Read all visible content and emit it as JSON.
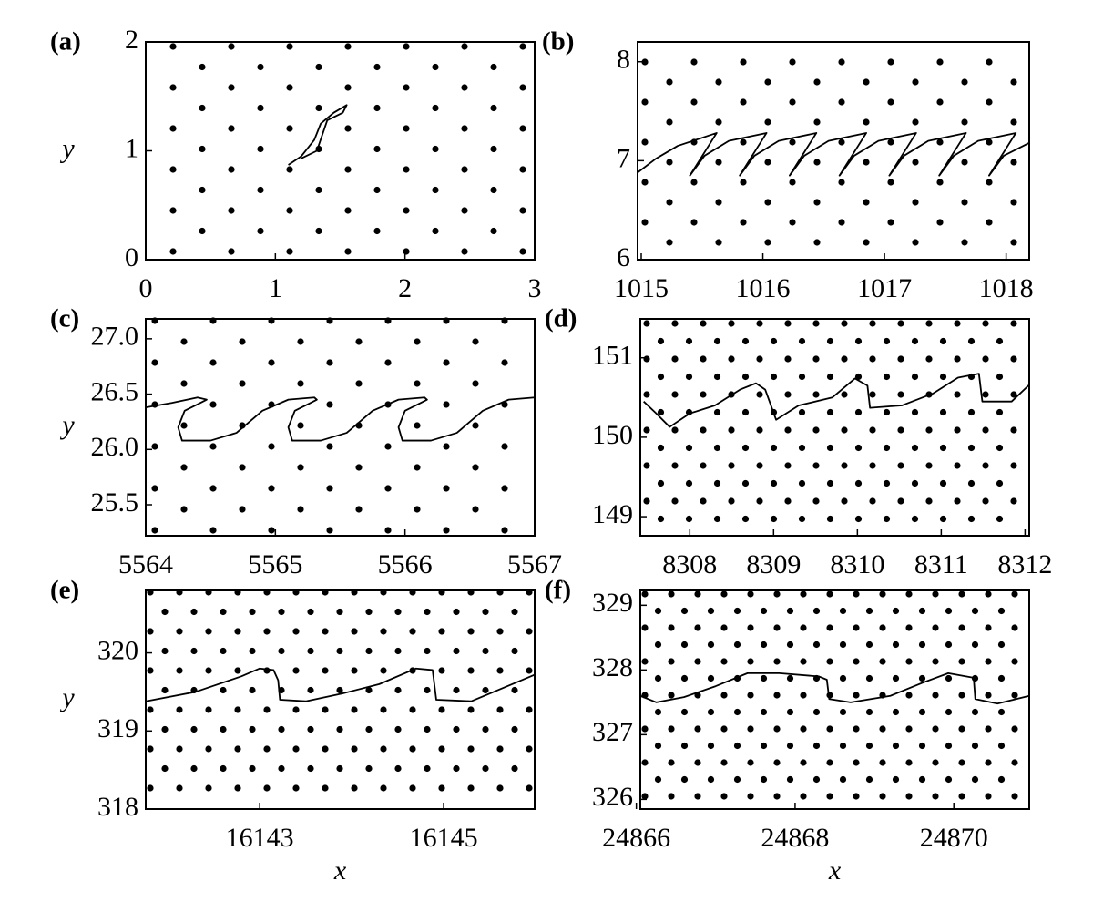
{
  "chart_data": [
    {
      "type": "line",
      "label": "(a)",
      "y_label": "y",
      "xlim": [
        0,
        3
      ],
      "ylim": [
        0,
        2
      ],
      "xticks": [
        0,
        1,
        2,
        3
      ],
      "yticks": [
        0,
        1,
        2
      ],
      "series": [
        {
          "color": "#000000",
          "x": [
            1.1,
            1.2,
            1.3,
            1.35,
            1.45,
            1.55,
            1.52,
            1.4,
            1.32,
            1.2
          ],
          "y": [
            0.87,
            0.95,
            1.1,
            1.25,
            1.35,
            1.42,
            1.35,
            1.28,
            1.0,
            0.93
          ]
        }
      ]
    },
    {
      "type": "line",
      "label": "(b)",
      "xlim": [
        1014.97,
        1018.19
      ],
      "ylim": [
        6,
        8.2
      ],
      "xticks": [
        1015,
        1016,
        1017,
        1018
      ],
      "yticks": [
        6,
        7,
        8
      ],
      "series": [
        {
          "color": "#000000",
          "x": [
            1014.97,
            1015.12,
            1015.3,
            1015.62,
            1015.4,
            1015.52,
            1015.72,
            1016.03,
            1015.81,
            1015.93,
            1016.13,
            1016.44,
            1016.22,
            1016.34,
            1016.54,
            1016.85,
            1016.63,
            1016.75,
            1016.95,
            1017.26,
            1017.04,
            1017.16,
            1017.36,
            1017.67,
            1017.45,
            1017.57,
            1017.77,
            1018.08,
            1017.86,
            1017.98,
            1018.19
          ],
          "y": [
            6.88,
            7.02,
            7.15,
            7.28,
            6.85,
            7.05,
            7.2,
            7.28,
            6.85,
            7.05,
            7.2,
            7.28,
            6.85,
            7.05,
            7.2,
            7.28,
            6.85,
            7.05,
            7.2,
            7.28,
            6.85,
            7.05,
            7.2,
            7.28,
            6.85,
            7.05,
            7.2,
            7.28,
            6.85,
            7.05,
            7.18
          ]
        }
      ]
    },
    {
      "type": "line",
      "label": "(c)",
      "y_label": "y",
      "xlim": [
        5564,
        5567
      ],
      "ylim": [
        25.22,
        27.18
      ],
      "xticks": [
        5564,
        5565,
        5566,
        5567
      ],
      "yticks": [
        {
          "value": 27,
          "label": "27.0"
        },
        26.5,
        {
          "value": 26,
          "label": "26.0"
        },
        25.5
      ],
      "series": [
        {
          "color": "#000000",
          "x": [
            5564,
            5564.2,
            5564.4,
            5564.47,
            5564.42,
            5564.3,
            5564.25,
            5564.28,
            5564.5,
            5564.7,
            5564.9,
            5565.1,
            5565.3,
            5565.32,
            5565.27,
            5565.15,
            5565.1,
            5565.13,
            5565.35,
            5565.55,
            5565.75,
            5565.95,
            5566.15,
            5566.17,
            5566.12,
            5566.0,
            5565.95,
            5565.98,
            5566.2,
            5566.4,
            5566.6,
            5566.8,
            5567.0
          ],
          "y": [
            26.38,
            26.42,
            26.47,
            26.45,
            26.42,
            26.35,
            26.2,
            26.08,
            26.08,
            26.15,
            26.35,
            26.45,
            26.47,
            26.45,
            26.42,
            26.35,
            26.2,
            26.08,
            26.08,
            26.15,
            26.35,
            26.45,
            26.47,
            26.45,
            26.42,
            26.35,
            26.2,
            26.08,
            26.08,
            26.15,
            26.35,
            26.45,
            26.47
          ]
        }
      ]
    },
    {
      "type": "line",
      "label": "(d)",
      "xlim": [
        8307.41,
        8312.05
      ],
      "ylim": [
        148.76,
        151.49
      ],
      "xticks": [
        8308,
        8309,
        8310,
        8311,
        8312
      ],
      "yticks": [
        149,
        150,
        151
      ],
      "series": [
        {
          "color": "#000000",
          "x": [
            8307.45,
            8307.6,
            8307.76,
            8308.0,
            8308.3,
            8308.6,
            8308.79,
            8308.9,
            8309.03,
            8309.3,
            8309.7,
            8309.97,
            8310.12,
            8310.15,
            8310.53,
            8310.9,
            8311.2,
            8311.45,
            8311.49,
            8311.84,
            8312.05
          ],
          "y": [
            150.45,
            150.3,
            150.13,
            150.3,
            150.4,
            150.6,
            150.68,
            150.6,
            150.22,
            150.4,
            150.5,
            150.74,
            150.65,
            150.37,
            150.4,
            150.55,
            150.75,
            150.8,
            150.45,
            150.45,
            150.66
          ]
        }
      ]
    },
    {
      "type": "line",
      "label": "(e)",
      "y_label": "y",
      "x_label": "x",
      "xlim": [
        16141.76,
        16145.99
      ],
      "ylim": [
        318,
        320.8
      ],
      "xticks": [
        16143,
        16145
      ],
      "yticks": [
        318,
        319,
        320
      ],
      "series": [
        {
          "color": "#000000",
          "x": [
            16141.76,
            16142.3,
            16142.8,
            16143.0,
            16143.15,
            16143.2,
            16143.22,
            16143.5,
            16143.9,
            16144.3,
            16144.7,
            16144.88,
            16144.92,
            16145.3,
            16145.99
          ],
          "y": [
            319.38,
            319.5,
            319.7,
            319.8,
            319.78,
            319.65,
            319.4,
            319.38,
            319.48,
            319.6,
            319.8,
            319.78,
            319.4,
            319.38,
            319.72
          ]
        }
      ]
    },
    {
      "type": "line",
      "label": "(f)",
      "x_label": "x",
      "xlim": [
        24866.05,
        24870.95
      ],
      "ylim": [
        325.85,
        329.23
      ],
      "xticks": [
        24866,
        24868,
        24870
      ],
      "yticks": [
        326,
        327,
        328,
        329
      ],
      "series": [
        {
          "color": "#000000",
          "x": [
            24866.05,
            24866.25,
            24866.6,
            24867.0,
            24867.4,
            24867.8,
            24868.3,
            24868.4,
            24868.43,
            24868.7,
            24869.2,
            24869.6,
            24869.93,
            24870.25,
            24870.27,
            24870.55,
            24870.95
          ],
          "y": [
            327.6,
            327.5,
            327.58,
            327.75,
            327.95,
            327.95,
            327.9,
            327.85,
            327.55,
            327.5,
            327.6,
            327.8,
            327.95,
            327.88,
            327.55,
            327.48,
            327.6
          ]
        }
      ]
    }
  ]
}
